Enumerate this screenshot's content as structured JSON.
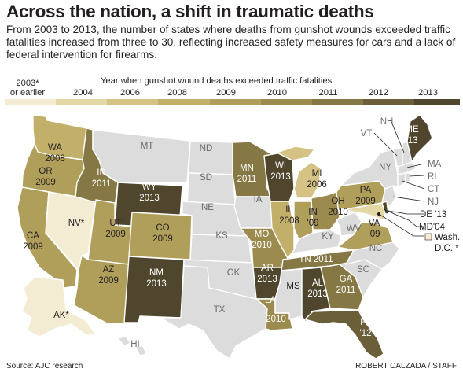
{
  "headline": "Across the nation, a shift in traumatic deaths",
  "subhead": "From 2003 to 2013, the number of states where deaths from gunshot wounds exceeded traffic fatalities increased from three to 30, reflecting increased safety measures for cars and a lack of federal intervention for firearms.",
  "legend": {
    "title": "Year when gunshot wound deaths exceeded traffic fatalities",
    "items": [
      {
        "label_line1": "2003*",
        "label_line2": "or earlier",
        "color": "#f4ecd2"
      },
      {
        "label_line1": "2004",
        "label_line2": "",
        "color": "#e4d7a6"
      },
      {
        "label_line1": "2006",
        "label_line2": "",
        "color": "#d4c385"
      },
      {
        "label_line1": "2008",
        "label_line2": "",
        "color": "#c2b06a"
      },
      {
        "label_line1": "2009",
        "label_line2": "",
        "color": "#b09f5a"
      },
      {
        "label_line1": "2010",
        "label_line2": "",
        "color": "#9b8b4e"
      },
      {
        "label_line1": "2011",
        "label_line2": "",
        "color": "#857844"
      },
      {
        "label_line1": "2012",
        "label_line2": "",
        "color": "#6a5f39"
      },
      {
        "label_line1": "2013",
        "label_line2": "",
        "color": "#4f462d"
      }
    ],
    "none_color": "#dcdcdc"
  },
  "state_labels": {
    "WA": [
      "WA",
      "2008"
    ],
    "OR": [
      "OR",
      "2009"
    ],
    "CA": [
      "CA",
      "2009"
    ],
    "NV": [
      "NV*"
    ],
    "ID": [
      "ID",
      "2011"
    ],
    "MT": [
      "MT"
    ],
    "WY": [
      "WY",
      "2013"
    ],
    "UT": [
      "UT",
      "2009"
    ],
    "CO": [
      "CO",
      "2009"
    ],
    "AZ": [
      "AZ",
      "2009"
    ],
    "NM": [
      "NM",
      "2013"
    ],
    "ND": [
      "ND"
    ],
    "SD": [
      "SD"
    ],
    "NE": [
      "NE"
    ],
    "KS": [
      "KS"
    ],
    "OK": [
      "OK"
    ],
    "TX": [
      "TX"
    ],
    "MN": [
      "MN",
      "2011"
    ],
    "IA": [
      "IA"
    ],
    "MO": [
      "MO",
      "2010"
    ],
    "AR": [
      "AR",
      "2013"
    ],
    "LA": [
      "LA",
      "2010"
    ],
    "WI": [
      "WI",
      "2013"
    ],
    "IL": [
      "IL",
      "2008"
    ],
    "MI": [
      "MI",
      "2006"
    ],
    "IN": [
      "IN",
      "'09"
    ],
    "OH": [
      "OH",
      "2010"
    ],
    "KY": [
      "KY"
    ],
    "TN": [
      "TN 2011"
    ],
    "MS": [
      "MS"
    ],
    "AL": [
      "AL",
      "2013"
    ],
    "GA": [
      "GA",
      "2011"
    ],
    "FL": [
      "FL",
      "'12"
    ],
    "SC": [
      "SC"
    ],
    "NC": [
      "NC"
    ],
    "VA": [
      "VA",
      "'09"
    ],
    "WV": [
      "WV"
    ],
    "PA": [
      "PA",
      "2009"
    ],
    "NY": [
      "NY"
    ],
    "ME": [
      "ME",
      "'13"
    ],
    "AK": [
      "AK*"
    ],
    "HI": [
      "HI"
    ]
  },
  "callouts": {
    "VT": "VT",
    "NH": "NH",
    "MA": "MA",
    "RI": "RI",
    "CT": "CT",
    "NJ": "NJ",
    "DE": "DE '13",
    "MD": "MD'04",
    "DC_line1": "Wash.",
    "DC_line2": "D.C. *"
  },
  "source": "Source: AJC research",
  "credit": "ROBERT CALZADA / STAFF"
}
